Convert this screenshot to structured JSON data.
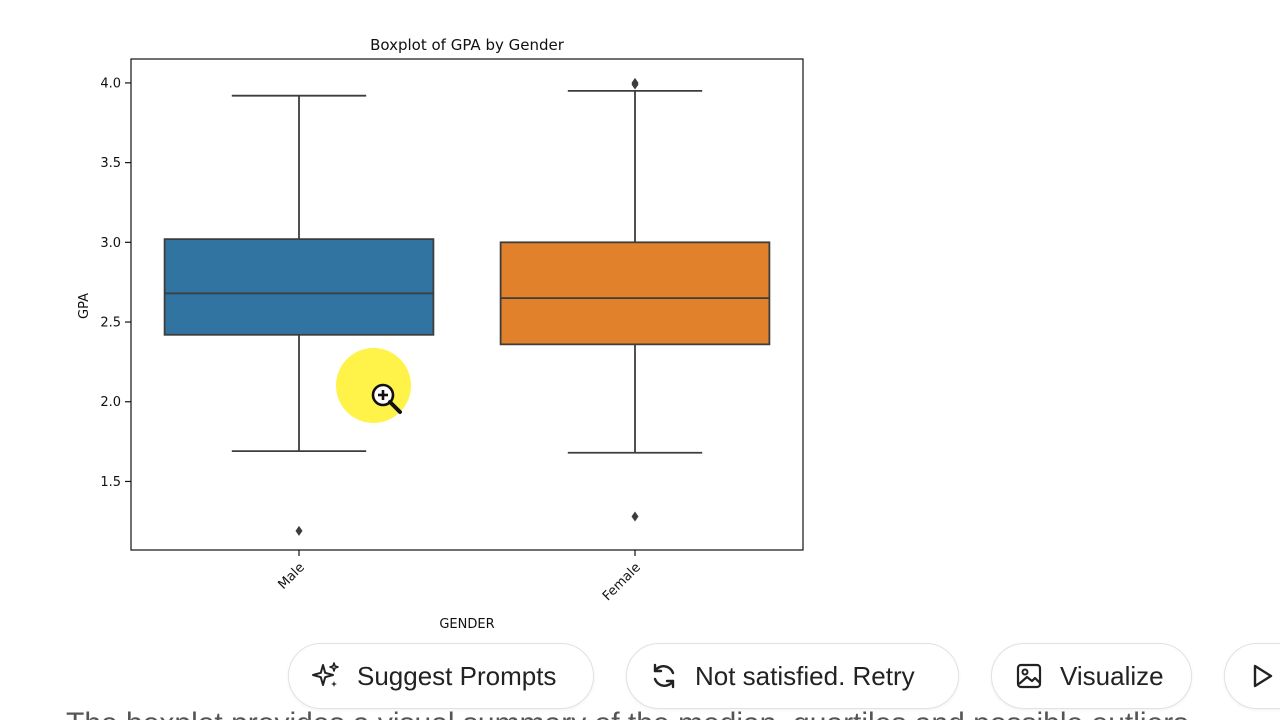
{
  "chart_data": {
    "type": "boxplot",
    "title": "Boxplot of GPA by Gender",
    "xlabel": "GENDER",
    "ylabel": "GPA",
    "ylim": [
      1.07,
      4.15
    ],
    "yticks": [
      1.5,
      2.0,
      2.5,
      3.0,
      3.5,
      4.0
    ],
    "ytick_labels": [
      "1.5",
      "2.0",
      "2.5",
      "3.0",
      "3.5",
      "4.0"
    ],
    "categories": [
      "Male",
      "Female"
    ],
    "boxes": [
      {
        "category": "Male",
        "color": "#3274a1",
        "whisker_low": 1.69,
        "q1": 2.42,
        "median": 2.68,
        "q3": 3.02,
        "whisker_high": 3.92,
        "outliers": [
          1.19
        ]
      },
      {
        "category": "Female",
        "color": "#e1812c",
        "whisker_low": 1.68,
        "q1": 2.36,
        "median": 2.65,
        "q3": 3.0,
        "whisker_high": 3.95,
        "outliers": [
          1.28,
          3.99,
          4.0
        ]
      }
    ]
  },
  "actions": {
    "suggest": "Suggest Prompts",
    "retry": "Not satisfied. Retry",
    "visualize": "Visualize"
  },
  "body_text": "The boxplot provides a visual summary of the median, quartiles and possible outliers"
}
